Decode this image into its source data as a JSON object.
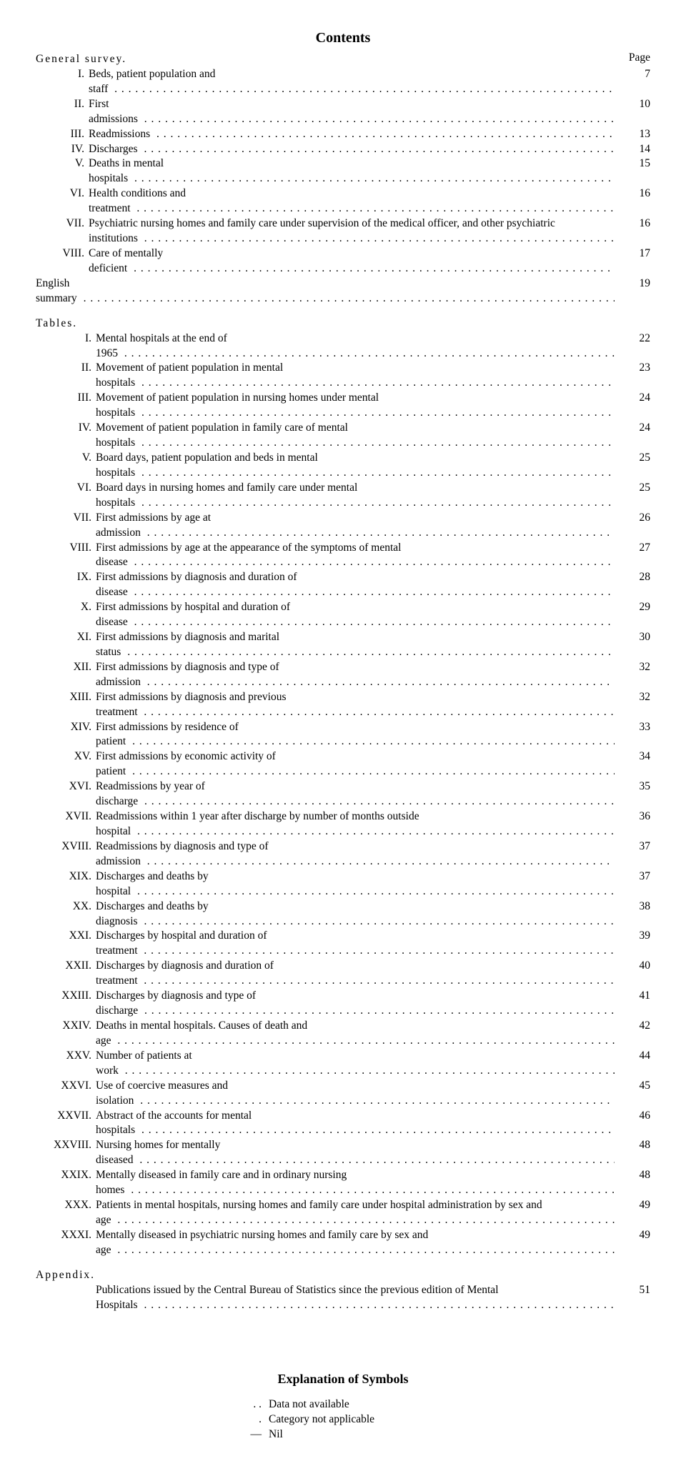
{
  "title": "Contents",
  "page_label": "Page",
  "sections": {
    "general": {
      "heading": "General survey.",
      "items": [
        {
          "num": "I.",
          "desc": "Beds, patient population and staff",
          "page": "7"
        },
        {
          "num": "II.",
          "desc": "First admissions",
          "page": "10"
        },
        {
          "num": "III.",
          "desc": "Readmissions",
          "page": "13"
        },
        {
          "num": "IV.",
          "desc": "Discharges",
          "page": "14"
        },
        {
          "num": "V.",
          "desc": "Deaths in mental hospitals",
          "page": "15"
        },
        {
          "num": "VI.",
          "desc": "Health conditions and treatment",
          "page": "16"
        },
        {
          "num": "VII.",
          "desc": "Psychiatric nursing homes and family care under supervision of the medical officer, and other psychiatric institutions",
          "page": "16"
        },
        {
          "num": "VIII.",
          "desc": "Care of mentally deficient",
          "page": "17"
        }
      ],
      "english_summary": {
        "desc": "English summary",
        "page": "19"
      }
    },
    "tables": {
      "heading": "Tables.",
      "items": [
        {
          "num": "I.",
          "desc": "Mental hospitals at the end of 1965",
          "page": "22"
        },
        {
          "num": "II.",
          "desc": "Movement of patient population in mental hospitals",
          "page": "23"
        },
        {
          "num": "III.",
          "desc": "Movement of patient population in nursing homes under mental hospitals",
          "page": "24"
        },
        {
          "num": "IV.",
          "desc": "Movement of patient population in family care of mental hospitals",
          "page": "24"
        },
        {
          "num": "V.",
          "desc": "Board days, patient population and beds in mental hospitals",
          "page": "25"
        },
        {
          "num": "VI.",
          "desc": "Board days in nursing homes and family care under mental hospitals",
          "page": "25"
        },
        {
          "num": "VII.",
          "desc": "First admissions by age at admission",
          "page": "26"
        },
        {
          "num": "VIII.",
          "desc": "First admissions by age at the appearance of the symptoms of mental disease",
          "page": "27"
        },
        {
          "num": "IX.",
          "desc": "First admissions by diagnosis and duration of disease",
          "page": "28"
        },
        {
          "num": "X.",
          "desc": "First admissions by hospital and duration of disease",
          "page": "29"
        },
        {
          "num": "XI.",
          "desc": "First admissions by diagnosis and marital status",
          "page": "30"
        },
        {
          "num": "XII.",
          "desc": "First admissions by diagnosis and type of admission",
          "page": "32"
        },
        {
          "num": "XIII.",
          "desc": "First admissions by diagnosis and previous treatment",
          "page": "32"
        },
        {
          "num": "XIV.",
          "desc": "First admissions by residence of patient",
          "page": "33"
        },
        {
          "num": "XV.",
          "desc": "First admissions by economic activity of patient",
          "page": "34"
        },
        {
          "num": "XVI.",
          "desc": "Readmissions by year of discharge",
          "page": "35"
        },
        {
          "num": "XVII.",
          "desc": "Readmissions within 1 year after discharge by number of months outside hospital",
          "page": "36"
        },
        {
          "num": "XVIII.",
          "desc": "Readmissions by diagnosis and type of admission",
          "page": "37"
        },
        {
          "num": "XIX.",
          "desc": "Discharges and deaths by hospital",
          "page": "37"
        },
        {
          "num": "XX.",
          "desc": "Discharges and deaths by diagnosis",
          "page": "38"
        },
        {
          "num": "XXI.",
          "desc": "Discharges by hospital and duration of treatment",
          "page": "39"
        },
        {
          "num": "XXII.",
          "desc": "Discharges by diagnosis and duration of treatment",
          "page": "40"
        },
        {
          "num": "XXIII.",
          "desc": "Discharges by diagnosis and type of discharge",
          "page": "41"
        },
        {
          "num": "XXIV.",
          "desc": "Deaths in mental hospitals. Causes of death and age",
          "page": "42"
        },
        {
          "num": "XXV.",
          "desc": "Number of patients at work",
          "page": "44"
        },
        {
          "num": "XXVI.",
          "desc": "Use of coercive measures and isolation",
          "page": "45"
        },
        {
          "num": "XXVII.",
          "desc": "Abstract of the accounts for mental hospitals",
          "page": "46"
        },
        {
          "num": "XXVIII.",
          "desc": "Nursing homes for mentally diseased",
          "page": "48"
        },
        {
          "num": "XXIX.",
          "desc": "Mentally diseased in family care and in ordinary nursing homes",
          "page": "48"
        },
        {
          "num": "XXX.",
          "desc": "Patients in mental hospitals, nursing homes and family care under hospital administration by sex and age",
          "page": "49"
        },
        {
          "num": "XXXI.",
          "desc": "Mentally diseased in psychiatric nursing homes and family care by sex and age",
          "page": "49"
        }
      ]
    },
    "appendix": {
      "heading": "Appendix.",
      "items": [
        {
          "num": "",
          "desc": "Publications issued by the Central Bureau of Statistics since the previous edition of Mental Hospitals",
          "page": "51"
        }
      ]
    }
  },
  "symbols": {
    "title": "Explanation of Symbols",
    "rows": [
      {
        "mark": ". .",
        "text": "Data not available"
      },
      {
        "mark": ".",
        "text": "Category not applicable"
      },
      {
        "mark": "—",
        "text": "Nil"
      }
    ]
  }
}
